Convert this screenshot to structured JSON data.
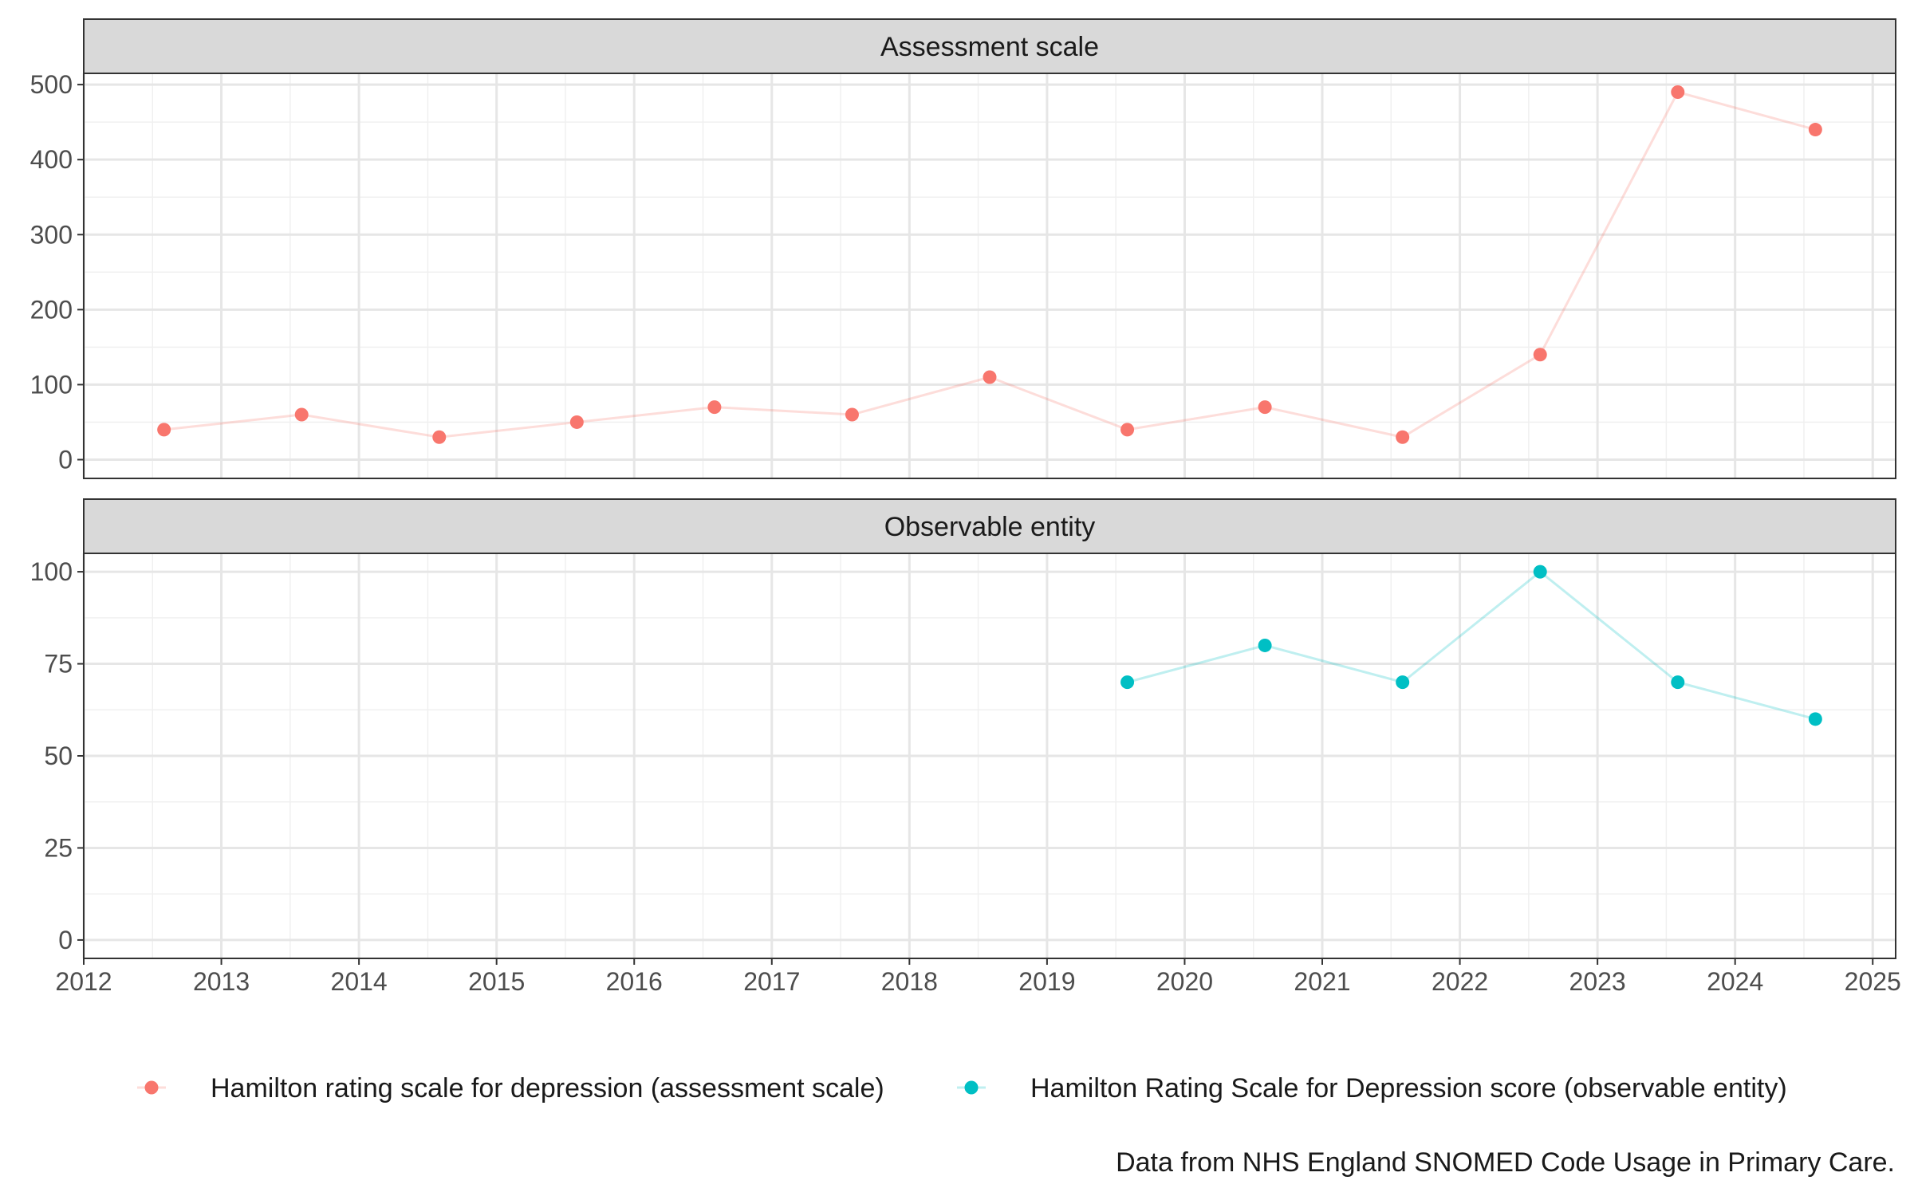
{
  "chart_data": {
    "type": "line",
    "caption": "Data from NHS England SNOMED Code Usage in Primary Care.",
    "x_ticks": [
      "2012",
      "2013",
      "2014",
      "2015",
      "2016",
      "2017",
      "2018",
      "2019",
      "2020",
      "2021",
      "2022",
      "2023",
      "2024",
      "2025"
    ],
    "xlim": [
      "2012-01-01",
      "2025-03-01"
    ],
    "grid": true,
    "legend_position": "bottom",
    "panels": [
      {
        "title": "Assessment scale",
        "ylim": [
          -25,
          515
        ],
        "y_ticks": [
          0,
          100,
          200,
          300,
          400,
          500
        ],
        "series": [
          {
            "name": "Hamilton rating scale for depression (assessment scale)",
            "color": "#F8766D",
            "x": [
              "2012-08-01",
              "2013-08-01",
              "2014-08-01",
              "2015-08-01",
              "2016-08-01",
              "2017-08-01",
              "2018-08-01",
              "2019-08-01",
              "2020-08-01",
              "2021-08-01",
              "2022-08-01",
              "2023-08-01",
              "2024-08-01"
            ],
            "y": [
              40,
              60,
              30,
              50,
              70,
              60,
              110,
              40,
              70,
              30,
              140,
              490,
              440
            ]
          }
        ]
      },
      {
        "title": "Observable entity",
        "ylim": [
          -5,
          105
        ],
        "y_ticks": [
          0,
          25,
          50,
          75,
          100
        ],
        "series": [
          {
            "name": "Hamilton Rating Scale for Depression score (observable entity)",
            "color": "#00BFC4",
            "x": [
              "2019-08-01",
              "2020-08-01",
              "2021-08-01",
              "2022-08-01",
              "2023-08-01",
              "2024-08-01"
            ],
            "y": [
              70,
              80,
              70,
              100,
              70,
              60
            ]
          }
        ]
      }
    ],
    "legend": [
      {
        "label": "Hamilton rating scale for depression (assessment scale)",
        "color": "#F8766D"
      },
      {
        "label": "Hamilton Rating Scale for Depression score (observable entity)",
        "color": "#00BFC4"
      }
    ]
  }
}
